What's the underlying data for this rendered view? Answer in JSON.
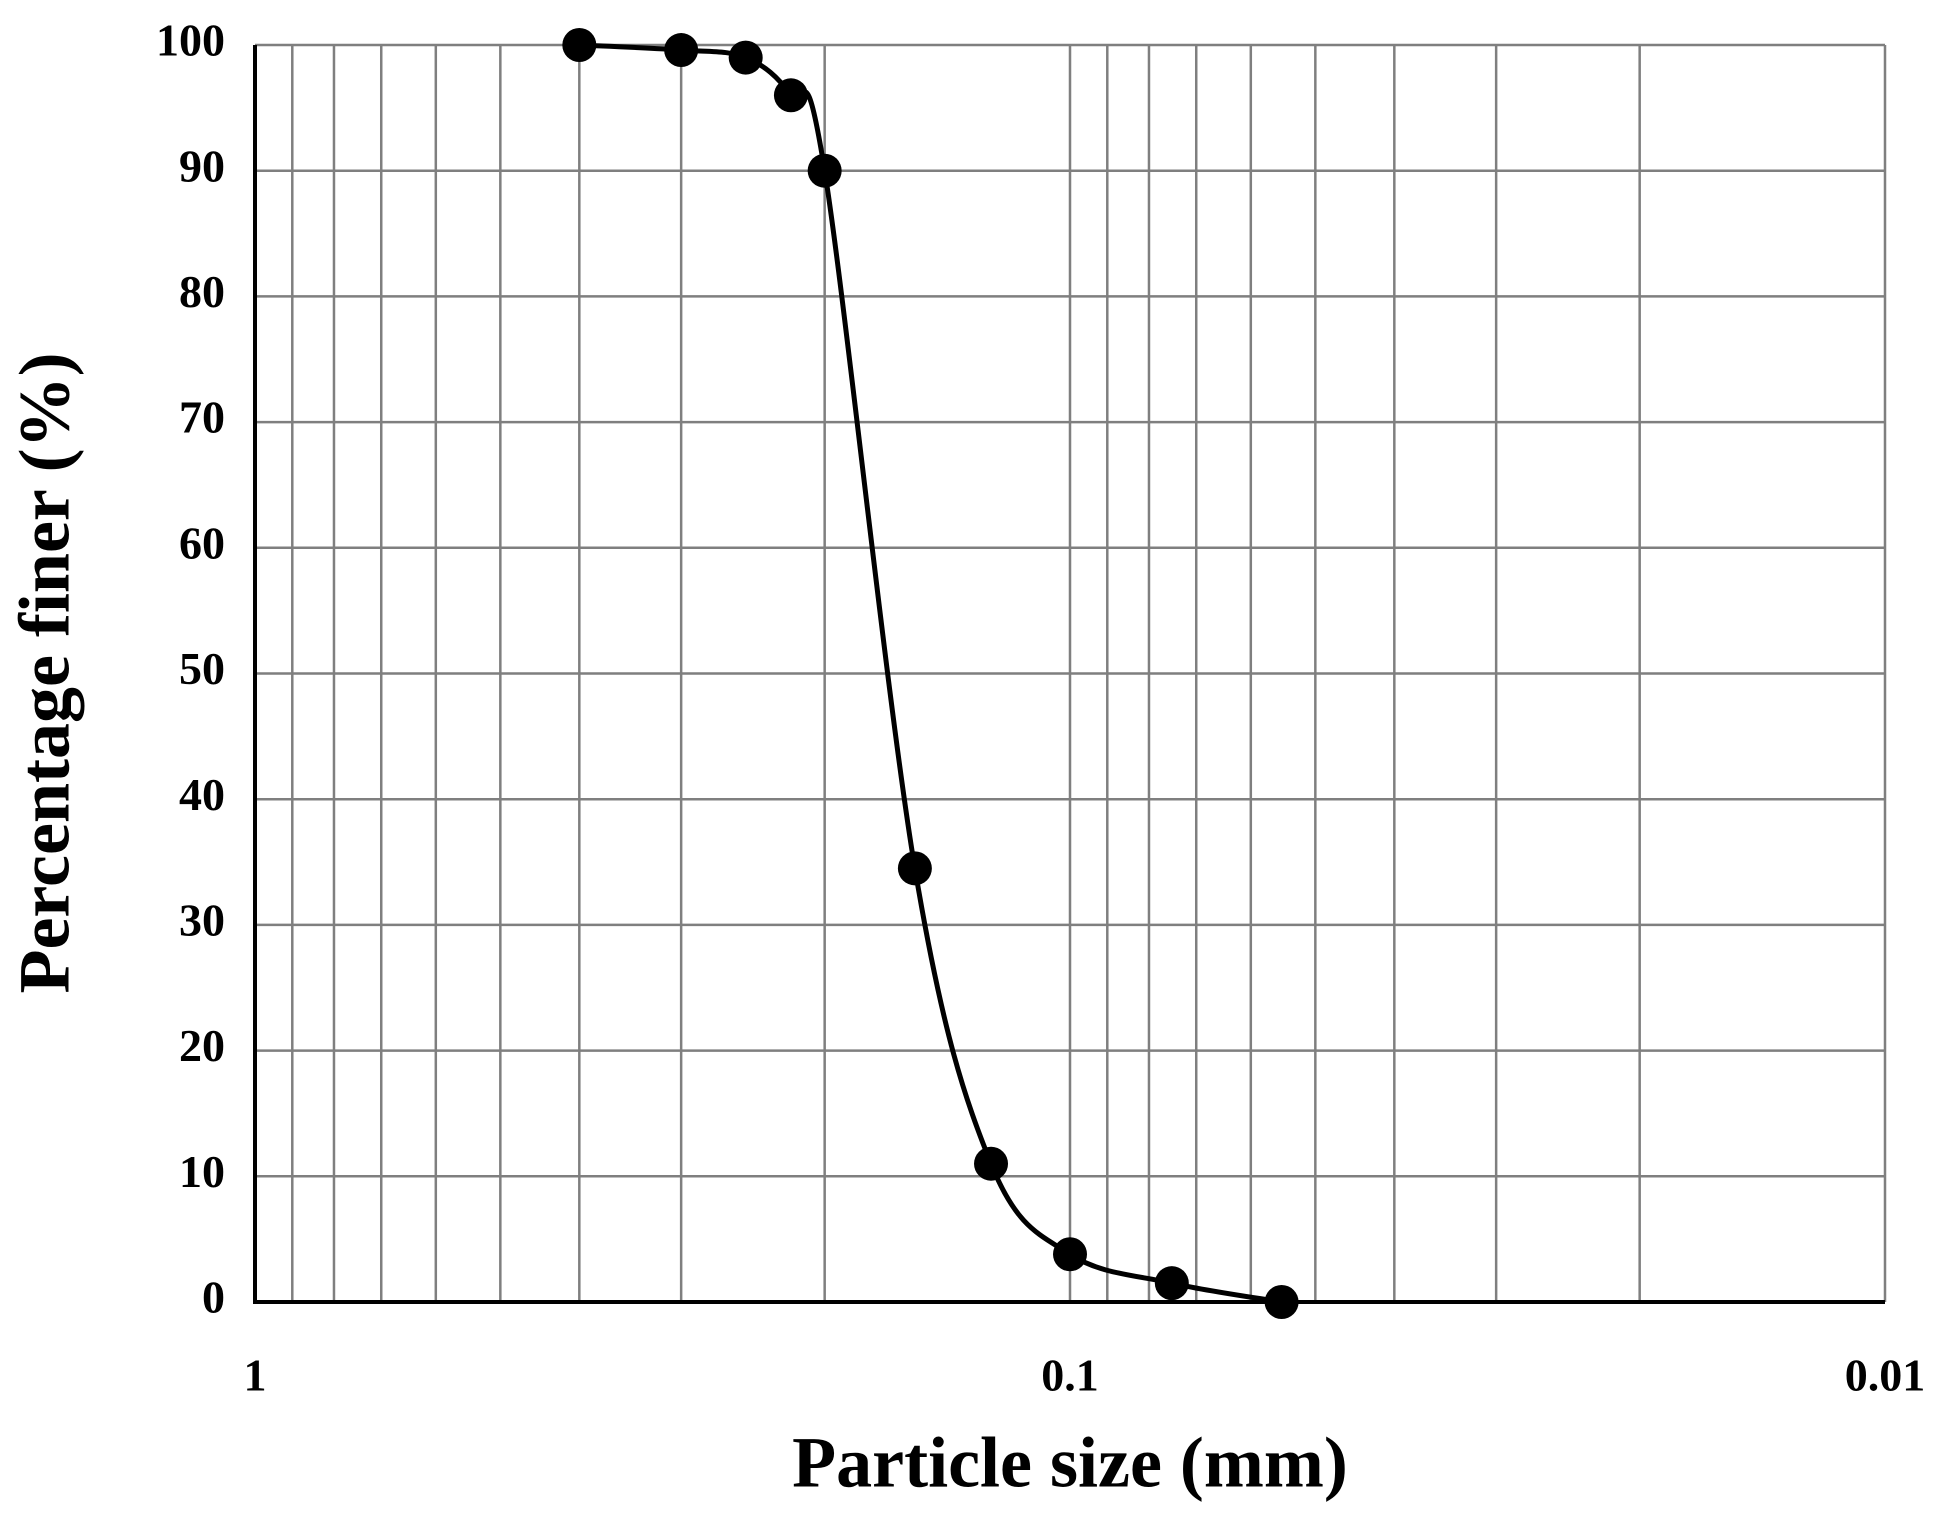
{
  "chart_data": {
    "type": "line",
    "xlabel": "Particle size (mm)",
    "ylabel": "Percentage finer (%)",
    "x": [
      0.4,
      0.3,
      0.25,
      0.22,
      0.2,
      0.155,
      0.125,
      0.1,
      0.075,
      0.055
    ],
    "series": [
      {
        "name": "Percentage finer",
        "color": "#000000",
        "values": [
          100,
          99.6,
          99,
          96,
          90,
          34.5,
          11,
          3.8,
          1.5,
          0
        ]
      }
    ],
    "xscale": "log",
    "xreversed": true,
    "xlim": [
      1,
      0.01
    ],
    "xticks": [
      1,
      0.1,
      0.01
    ],
    "xminorticks": [
      0.9,
      0.8,
      0.7,
      0.6,
      0.5,
      0.4,
      0.3,
      0.2,
      0.09,
      0.08,
      0.07,
      0.06,
      0.05,
      0.04,
      0.03,
      0.02
    ],
    "ylim": [
      0,
      100
    ],
    "yticks": [
      0,
      10,
      20,
      30,
      40,
      50,
      60,
      70,
      80,
      90,
      100
    ],
    "grid": true,
    "smooth": true
  }
}
